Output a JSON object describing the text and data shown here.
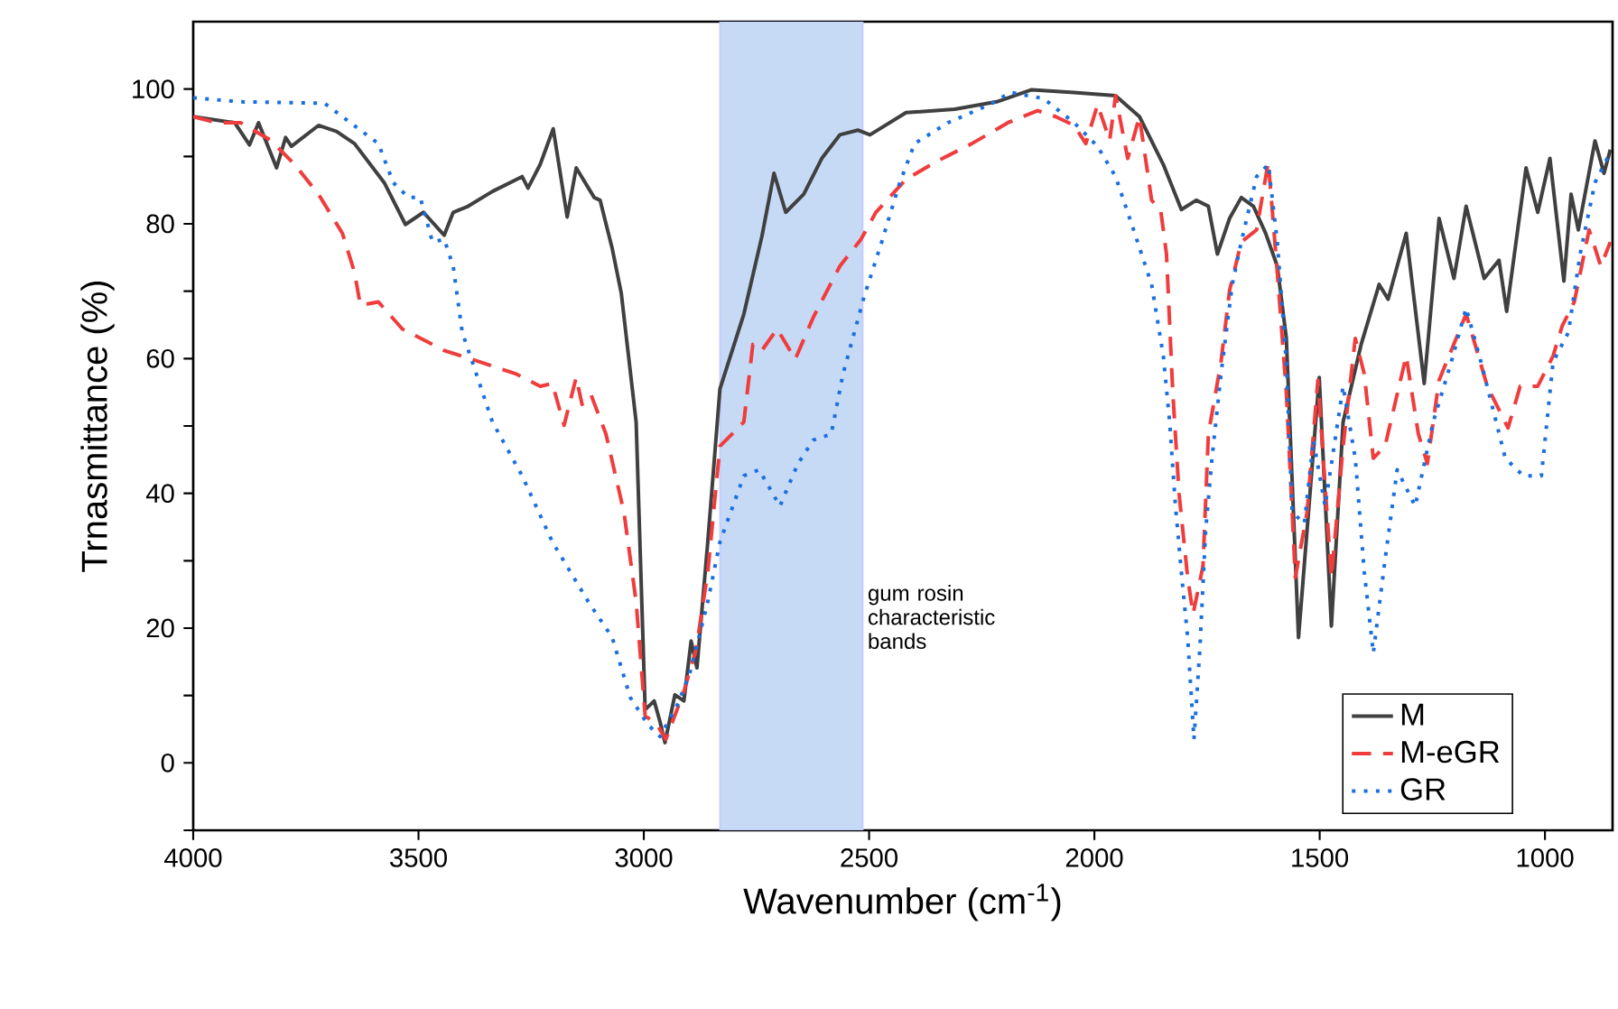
{
  "chart_data": {
    "type": "line",
    "xlabel": "Wavenumber (cm$^{-1}$)",
    "ylabel": "Trnasmittance (%)",
    "xlim": [
      4000,
      850
    ],
    "xticks": [
      4000,
      3500,
      3000,
      2500,
      2000,
      1500,
      1000
    ],
    "ylim": [
      -10,
      110
    ],
    "yticks": [
      {
        "value": -10,
        "label": null
      },
      0,
      {
        "value": 10,
        "label": null
      },
      20,
      {
        "value": 30,
        "label": null
      },
      40,
      {
        "value": 50,
        "label": null
      },
      60,
      {
        "value": 70,
        "label": null
      },
      80,
      {
        "value": 90,
        "label": null
      },
      100
    ],
    "legend": "bottom right",
    "bands": [
      {
        "axis": "x",
        "from": 2830,
        "to": 2515,
        "label": "gum rosin characteristic bands",
        "color": "#c6daf6"
      }
    ],
    "series": [
      {
        "name": "M",
        "color": "#404040",
        "line_style": "solid",
        "x": [
          4000,
          3908,
          3875,
          3855,
          3815,
          3795,
          3782,
          3722,
          3682,
          3642,
          3576,
          3529,
          3489,
          3443,
          3423,
          3390,
          3336,
          3270,
          3257,
          3230,
          3201,
          3170,
          3150,
          3110,
          3097,
          3070,
          3050,
          3017,
          2997,
          2977,
          2964,
          2953,
          2931,
          2911,
          2895,
          2882,
          2858,
          2831,
          2778,
          2738,
          2711,
          2685,
          2645,
          2605,
          2565,
          2525,
          2498,
          2418,
          2310,
          2217,
          2139,
          2045,
          1953,
          1900,
          1847,
          1807,
          1774,
          1747,
          1727,
          1700,
          1674,
          1647,
          1620,
          1594,
          1574,
          1547,
          1501,
          1474,
          1448,
          1408,
          1368,
          1348,
          1308,
          1268,
          1235,
          1202,
          1175,
          1135,
          1102,
          1085,
          1042,
          1016,
          989,
          958,
          942,
          926,
          889,
          869,
          855
        ],
        "values": [
          95.9,
          95.0,
          91.7,
          95.0,
          88.3,
          92.8,
          91.5,
          94.6,
          93.7,
          91.9,
          86.1,
          79.9,
          81.7,
          78.3,
          81.7,
          82.6,
          84.8,
          87.0,
          85.3,
          88.8,
          94.1,
          81.0,
          88.3,
          83.9,
          83.5,
          76.3,
          69.7,
          50.6,
          7.9,
          9.2,
          6.1,
          3.0,
          10.1,
          9.2,
          18.1,
          14.1,
          32.8,
          55.5,
          66.6,
          78.1,
          87.5,
          81.7,
          84.4,
          89.7,
          93.2,
          93.9,
          93.2,
          96.5,
          97.0,
          98.1,
          99.9,
          99.5,
          99.0,
          95.9,
          88.8,
          82.1,
          83.5,
          82.6,
          75.5,
          80.8,
          83.9,
          82.6,
          78.6,
          73.7,
          63.0,
          18.6,
          57.2,
          20.3,
          50.6,
          62.1,
          71.0,
          68.8,
          78.6,
          56.3,
          80.8,
          71.9,
          82.6,
          71.9,
          74.6,
          67.0,
          88.3,
          81.7,
          89.7,
          71.5,
          84.4,
          79.1,
          92.3,
          87.5,
          91.0
        ]
      },
      {
        "name": "M-eGR",
        "color": "#f03c3c",
        "line_style": "dashed",
        "x": [
          4000,
          3948,
          3895,
          3828,
          3775,
          3722,
          3669,
          3642,
          3629,
          3589,
          3536,
          3443,
          3363,
          3283,
          3230,
          3203,
          3177,
          3150,
          3137,
          3117,
          3084,
          3044,
          3017,
          2997,
          2971,
          2951,
          2911,
          2884,
          2858,
          2831,
          2804,
          2778,
          2758,
          2738,
          2704,
          2664,
          2624,
          2565,
          2518,
          2485,
          2418,
          2352,
          2272,
          2192,
          2126,
          2086,
          2045,
          2019,
          1993,
          1966,
          1953,
          1926,
          1900,
          1873,
          1853,
          1840,
          1826,
          1812,
          1793,
          1781,
          1759,
          1747,
          1719,
          1700,
          1674,
          1640,
          1614,
          1594,
          1574,
          1554,
          1528,
          1504,
          1474,
          1448,
          1421,
          1401,
          1381,
          1355,
          1308,
          1281,
          1261,
          1235,
          1175,
          1128,
          1082,
          1055,
          1016,
          982,
          962,
          935,
          902,
          876,
          855
        ],
        "values": [
          95.9,
          95.0,
          95.0,
          92.4,
          88.8,
          84.4,
          78.6,
          72.8,
          67.9,
          68.4,
          64.4,
          61.2,
          59.5,
          57.7,
          55.9,
          56.3,
          50.1,
          57.2,
          53.2,
          54.6,
          48.8,
          37.2,
          23.9,
          7.0,
          5.7,
          3.5,
          10.6,
          16.8,
          28.3,
          47.0,
          48.8,
          50.6,
          62.1,
          61.2,
          64.4,
          59.9,
          66.1,
          73.7,
          77.7,
          81.7,
          86.6,
          89.2,
          91.9,
          95.0,
          96.8,
          95.9,
          94.6,
          91.9,
          97.7,
          92.4,
          99.0,
          89.7,
          95.9,
          83.5,
          82.1,
          75.5,
          55.0,
          39.9,
          27.5,
          22.1,
          29.2,
          48.8,
          59.5,
          70.1,
          77.3,
          79.1,
          89.2,
          72.8,
          55.0,
          27.5,
          37.2,
          56.8,
          27.5,
          47.0,
          63.0,
          57.7,
          45.2,
          47.0,
          60.4,
          48.8,
          44.4,
          56.8,
          66.6,
          55.9,
          49.7,
          55.9,
          55.9,
          60.4,
          64.8,
          68.4,
          79.1,
          73.7,
          77.3
        ]
      },
      {
        "name": "GR",
        "color": "#1a6fdf",
        "line_style": "dotted",
        "x": [
          4000,
          3895,
          3709,
          3669,
          3589,
          3556,
          3522,
          3496,
          3469,
          3443,
          3423,
          3403,
          3376,
          3336,
          3270,
          3203,
          3123,
          3070,
          3030,
          2991,
          2964,
          2924,
          2898,
          2858,
          2831,
          2778,
          2744,
          2698,
          2658,
          2624,
          2584,
          2558,
          2511,
          2472,
          2432,
          2399,
          2325,
          2232,
          2186,
          2113,
          2045,
          1993,
          1953,
          1913,
          1873,
          1847,
          1833,
          1820,
          1807,
          1793,
          1779,
          1766,
          1753,
          1739,
          1719,
          1694,
          1674,
          1640,
          1614,
          1594,
          1574,
          1561,
          1534,
          1514,
          1488,
          1448,
          1421,
          1401,
          1381,
          1355,
          1328,
          1288,
          1248,
          1208,
          1175,
          1142,
          1088,
          1048,
          1008,
          982,
          948,
          922,
          889,
          855
        ],
        "values": [
          98.7,
          98.1,
          97.9,
          95.9,
          91.9,
          86.1,
          83.9,
          83.9,
          77.3,
          77.7,
          73.7,
          63.9,
          58.6,
          50.6,
          42.6,
          32.8,
          23.9,
          18.6,
          9.7,
          5.7,
          3.9,
          8.8,
          13.3,
          23.9,
          32.8,
          42.6,
          43.5,
          38.1,
          44.4,
          47.9,
          48.8,
          57.7,
          69.2,
          77.3,
          86.1,
          91.9,
          95.0,
          97.7,
          99.5,
          98.6,
          95.0,
          91.5,
          87.0,
          79.1,
          71.0,
          60.4,
          50.6,
          38.1,
          28.3,
          18.6,
          3.5,
          16.8,
          34.6,
          45.2,
          57.7,
          71.0,
          77.3,
          87.0,
          88.8,
          77.3,
          59.5,
          37.2,
          35.5,
          47.9,
          38.1,
          55.9,
          45.2,
          28.3,
          16.3,
          30.1,
          43.5,
          38.1,
          50.6,
          59.5,
          67.5,
          59.5,
          45.2,
          42.6,
          42.6,
          59.5,
          63.9,
          75.5,
          86.1,
          90.6
        ]
      }
    ]
  }
}
